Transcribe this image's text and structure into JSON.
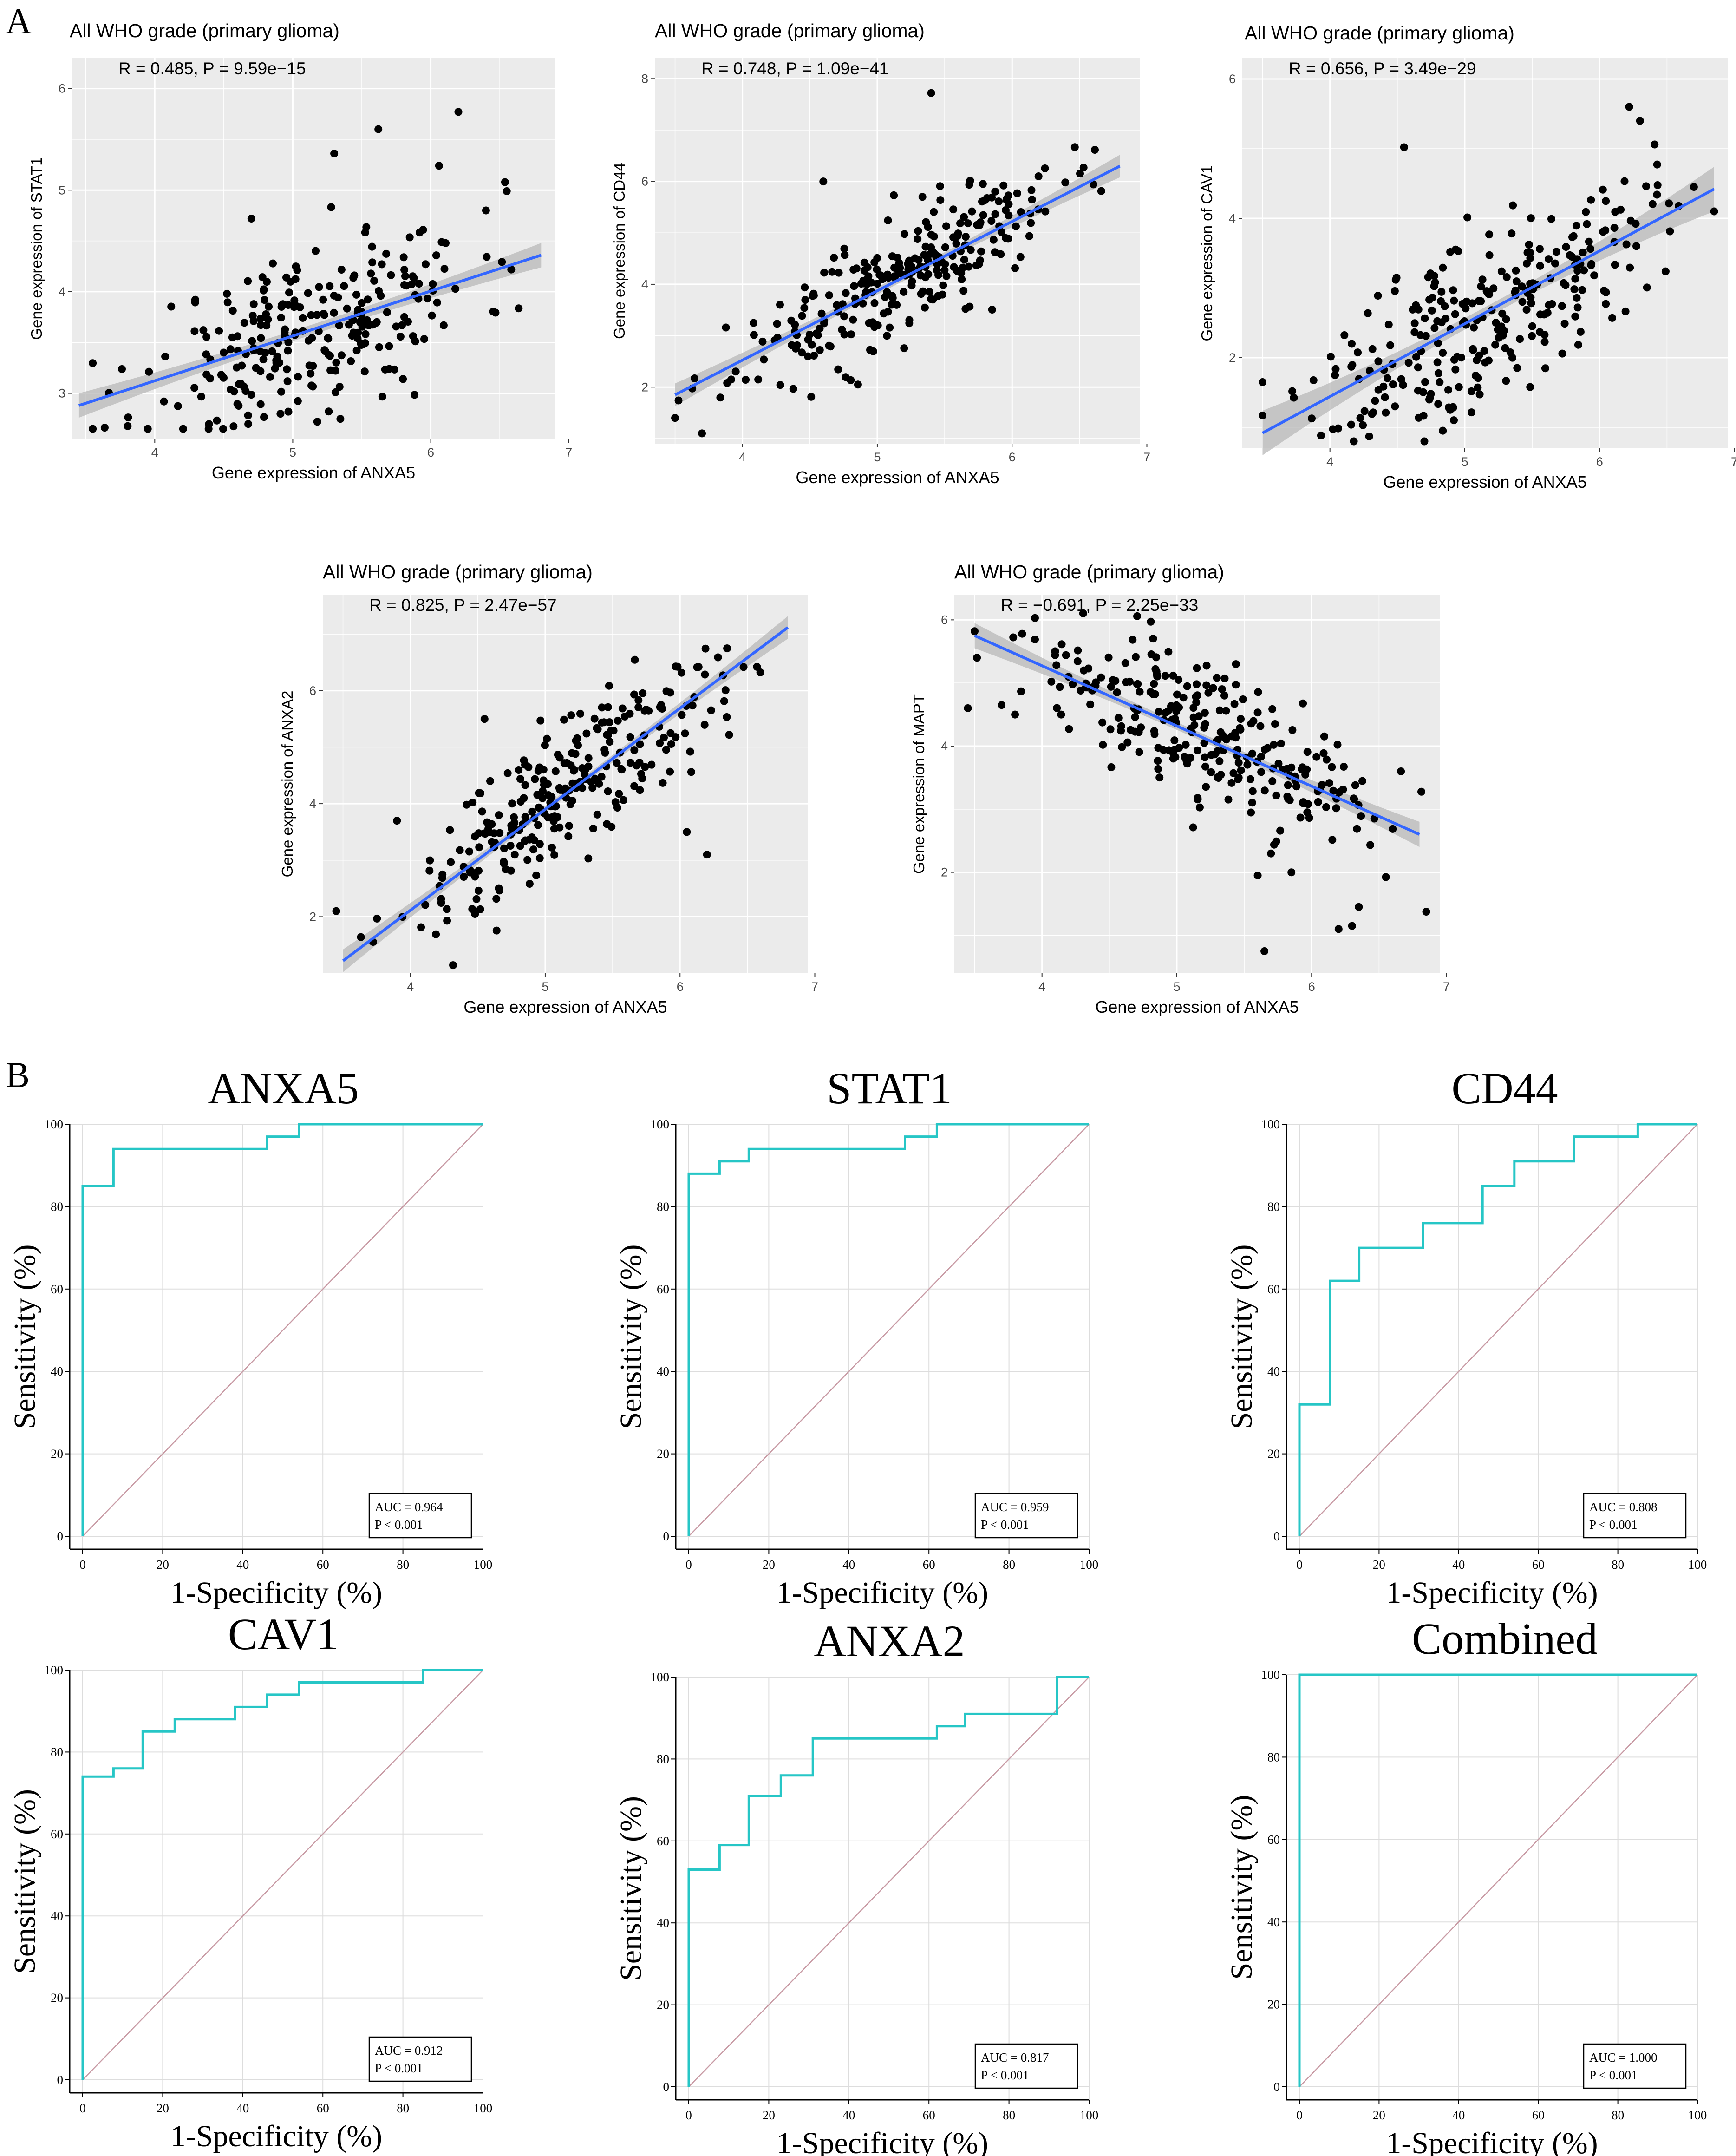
{
  "panel_labels": {
    "a": "A",
    "b": "B"
  },
  "colors": {
    "scatter_bg": "#ebebeb",
    "grid": "#ffffff",
    "point": "#000000",
    "reg_line": "#3366ff",
    "ci_band": "#b8b8b8",
    "roc_line": "#26c6c6",
    "diagonal": "#c89aa4",
    "roc_grid": "#dddddd"
  },
  "chart_data": [
    {
      "type": "scatter",
      "id": "stat1",
      "title": "All WHO grade (primary glioma)",
      "annotation": "R = 0.485, P = 9.59e−15",
      "xlabel": "Gene expression of ANXA5",
      "ylabel": "Gene expression of STAT1",
      "xlim": [
        3.4,
        6.9
      ],
      "ylim": [
        2.55,
        6.3
      ],
      "xticks": [
        4,
        5,
        6,
        7
      ],
      "yticks": [
        3,
        4,
        5,
        6
      ],
      "xtick_labels": [
        "4",
        "5",
        "6",
        "7"
      ],
      "ytick_labels": [
        "3",
        "4",
        "5",
        "6"
      ],
      "fit": {
        "x0": 3.45,
        "x1": 6.8,
        "y0": 2.88,
        "y1": 4.36,
        "ci_edge": 0.12,
        "ci_mid": 0.05
      },
      "n_points": 260,
      "seed": 11,
      "resid_sd": 0.42,
      "extra_points": [
        [
          5.3,
          5.36
        ],
        [
          5.62,
          5.6
        ],
        [
          6.2,
          5.77
        ],
        [
          6.06,
          5.24
        ],
        [
          6.4,
          4.8
        ],
        [
          4.7,
          4.72
        ]
      ]
    },
    {
      "type": "scatter",
      "id": "cd44",
      "title": "All WHO grade (primary glioma)",
      "annotation": "R = 0.748, P = 1.09e−41",
      "xlabel": "Gene expression of ANXA5",
      "ylabel": "Gene expression of CD44",
      "xlim": [
        3.35,
        6.95
      ],
      "ylim": [
        0.9,
        8.4
      ],
      "xticks": [
        4,
        5,
        6,
        7
      ],
      "yticks": [
        2,
        4,
        6,
        8
      ],
      "xtick_labels": [
        "4",
        "5",
        "6",
        "7"
      ],
      "ytick_labels": [
        "2",
        "4",
        "6",
        "8"
      ],
      "fit": {
        "x0": 3.5,
        "x1": 6.8,
        "y0": 1.85,
        "y1": 6.3,
        "ci_edge": 0.22,
        "ci_mid": 0.07
      },
      "n_points": 270,
      "seed": 23,
      "resid_sd": 0.55,
      "extra_points": [
        [
          5.4,
          7.72
        ],
        [
          3.7,
          1.1
        ],
        [
          3.5,
          1.4
        ],
        [
          4.6,
          6.0
        ]
      ]
    },
    {
      "type": "scatter",
      "id": "cav1",
      "title": "All WHO grade (primary glioma)",
      "annotation": "R = 0.656, P = 3.49e−29",
      "xlabel": "Gene expression of ANXA5",
      "ylabel": "Gene expression of CAV1",
      "xlim": [
        3.35,
        6.95
      ],
      "ylim": [
        0.7,
        6.3
      ],
      "xticks": [
        4,
        5,
        6,
        7
      ],
      "yticks": [
        2,
        4,
        6
      ],
      "xtick_labels": [
        "4",
        "5",
        "6",
        "7"
      ],
      "ytick_labels": [
        "2",
        "4",
        "6"
      ],
      "fit": {
        "x0": 3.5,
        "x1": 6.85,
        "y0": 0.92,
        "y1": 4.42,
        "ci_edge": 0.32,
        "ci_mid": 0.08
      },
      "n_points": 270,
      "seed": 37,
      "resid_sd": 0.62,
      "extra_points": [
        [
          4.55,
          5.02
        ],
        [
          6.22,
          5.6
        ],
        [
          6.3,
          5.4
        ],
        [
          6.7,
          4.45
        ],
        [
          6.85,
          4.1
        ],
        [
          3.5,
          1.65
        ]
      ]
    },
    {
      "type": "scatter",
      "id": "anxa2",
      "title": "All WHO grade (primary glioma)",
      "annotation": "R = 0.825, P = 2.47e−57",
      "xlabel": "Gene expression of ANXA5",
      "ylabel": "Gene expression of ANXA2",
      "xlim": [
        3.35,
        6.95
      ],
      "ylim": [
        1.0,
        7.7
      ],
      "xticks": [
        4,
        5,
        6,
        7
      ],
      "yticks": [
        2,
        4,
        6
      ],
      "xtick_labels": [
        "4",
        "5",
        "6",
        "7"
      ],
      "ytick_labels": [
        "2",
        "4",
        "6"
      ],
      "fit": {
        "x0": 3.5,
        "x1": 6.8,
        "y0": 1.22,
        "y1": 7.12,
        "ci_edge": 0.2,
        "ci_mid": 0.06
      },
      "n_points": 270,
      "seed": 51,
      "resid_sd": 0.62,
      "extra_points": [
        [
          3.45,
          2.1
        ],
        [
          3.9,
          3.7
        ],
        [
          4.55,
          5.5
        ],
        [
          6.2,
          3.1
        ],
        [
          6.05,
          3.5
        ]
      ]
    },
    {
      "type": "scatter",
      "id": "mapt",
      "title": "All WHO grade (primary glioma)",
      "annotation": "R = −0.691, P = 2.25e−33",
      "xlabel": "Gene expression of ANXA5",
      "ylabel": "Gene expression of MAPT",
      "xlim": [
        3.35,
        6.95
      ],
      "ylim": [
        0.4,
        6.4
      ],
      "xticks": [
        4,
        5,
        6,
        7
      ],
      "yticks": [
        2,
        4,
        6
      ],
      "xtick_labels": [
        "4",
        "5",
        "6",
        "7"
      ],
      "ytick_labels": [
        "2",
        "4",
        "6"
      ],
      "fit": {
        "x0": 3.5,
        "x1": 6.8,
        "y0": 5.75,
        "y1": 2.6,
        "ci_edge": 0.2,
        "ci_mid": 0.06
      },
      "n_points": 270,
      "seed": 67,
      "resid_sd": 0.55,
      "extra_points": [
        [
          3.45,
          4.6
        ],
        [
          3.7,
          4.65
        ],
        [
          3.8,
          4.5
        ],
        [
          5.65,
          0.75
        ],
        [
          6.2,
          1.1
        ],
        [
          6.3,
          1.15
        ],
        [
          6.35,
          1.45
        ],
        [
          5.6,
          1.95
        ],
        [
          5.85,
          2.0
        ]
      ]
    },
    {
      "type": "line",
      "subtype": "roc",
      "id": "roc-anxa5",
      "title": "ANXA5",
      "xlabel": "1-Specificity (%)",
      "ylabel": "Sensitivity (%)",
      "xlim": [
        0,
        100
      ],
      "ylim": [
        0,
        100
      ],
      "xticks": [
        0,
        20,
        40,
        60,
        80,
        100
      ],
      "yticks": [
        0,
        20,
        40,
        60,
        80,
        100
      ],
      "xtick_labels": [
        "0",
        "20",
        "40",
        "60",
        "80",
        "100"
      ],
      "ytick_labels": [
        "0",
        "20",
        "40",
        "60",
        "80",
        "100"
      ],
      "steps": [
        [
          0,
          0
        ],
        [
          0,
          85
        ],
        [
          7.7,
          85
        ],
        [
          7.7,
          94
        ],
        [
          46,
          94
        ],
        [
          46,
          97
        ],
        [
          54,
          97
        ],
        [
          54,
          100
        ],
        [
          100,
          100
        ]
      ],
      "auc_text": "AUC = 0.964",
      "p_text": "P < 0.001"
    },
    {
      "type": "line",
      "subtype": "roc",
      "id": "roc-stat1",
      "title": "STAT1",
      "xlabel": "1-Specificity (%)",
      "ylabel": "Sensitivity (%)",
      "xlim": [
        0,
        100
      ],
      "ylim": [
        0,
        100
      ],
      "xticks": [
        0,
        20,
        40,
        60,
        80,
        100
      ],
      "yticks": [
        0,
        20,
        40,
        60,
        80,
        100
      ],
      "xtick_labels": [
        "0",
        "20",
        "40",
        "60",
        "80",
        "100"
      ],
      "ytick_labels": [
        "0",
        "20",
        "40",
        "60",
        "80",
        "100"
      ],
      "steps": [
        [
          0,
          0
        ],
        [
          0,
          88
        ],
        [
          7.7,
          88
        ],
        [
          7.7,
          91
        ],
        [
          15,
          91
        ],
        [
          15,
          94
        ],
        [
          54,
          94
        ],
        [
          54,
          97
        ],
        [
          62,
          97
        ],
        [
          62,
          100
        ],
        [
          100,
          100
        ]
      ],
      "auc_text": "AUC = 0.959",
      "p_text": "P < 0.001"
    },
    {
      "type": "line",
      "subtype": "roc",
      "id": "roc-cd44",
      "title": "CD44",
      "xlabel": "1-Specificity (%)",
      "ylabel": "Sensitivity (%)",
      "xlim": [
        0,
        100
      ],
      "ylim": [
        0,
        100
      ],
      "xticks": [
        0,
        20,
        40,
        60,
        80,
        100
      ],
      "yticks": [
        0,
        20,
        40,
        60,
        80,
        100
      ],
      "xtick_labels": [
        "0",
        "20",
        "40",
        "60",
        "80",
        "100"
      ],
      "ytick_labels": [
        "0",
        "20",
        "40",
        "60",
        "80",
        "100"
      ],
      "steps": [
        [
          0,
          0
        ],
        [
          0,
          32
        ],
        [
          7.7,
          32
        ],
        [
          7.7,
          62
        ],
        [
          15,
          62
        ],
        [
          15,
          70
        ],
        [
          31,
          70
        ],
        [
          31,
          76
        ],
        [
          46,
          76
        ],
        [
          46,
          85
        ],
        [
          54,
          85
        ],
        [
          54,
          91
        ],
        [
          69,
          91
        ],
        [
          69,
          97
        ],
        [
          85,
          97
        ],
        [
          85,
          100
        ],
        [
          100,
          100
        ]
      ],
      "auc_text": "AUC = 0.808",
      "p_text": "P < 0.001"
    },
    {
      "type": "line",
      "subtype": "roc",
      "id": "roc-cav1",
      "title": "CAV1",
      "xlabel": "1-Specificity (%)",
      "ylabel": "Sensitivity (%)",
      "xlim": [
        0,
        100
      ],
      "ylim": [
        0,
        100
      ],
      "xticks": [
        0,
        20,
        40,
        60,
        80,
        100
      ],
      "yticks": [
        0,
        20,
        40,
        60,
        80,
        100
      ],
      "xtick_labels": [
        "0",
        "20",
        "40",
        "60",
        "80",
        "100"
      ],
      "ytick_labels": [
        "0",
        "20",
        "40",
        "60",
        "80",
        "100"
      ],
      "steps": [
        [
          0,
          0
        ],
        [
          0,
          74
        ],
        [
          7.7,
          74
        ],
        [
          7.7,
          76
        ],
        [
          15,
          76
        ],
        [
          15,
          85
        ],
        [
          23,
          85
        ],
        [
          23,
          88
        ],
        [
          38,
          88
        ],
        [
          38,
          91
        ],
        [
          46,
          91
        ],
        [
          46,
          94
        ],
        [
          54,
          94
        ],
        [
          54,
          97
        ],
        [
          85,
          97
        ],
        [
          85,
          100
        ],
        [
          100,
          100
        ]
      ],
      "auc_text": "AUC = 0.912",
      "p_text": "P < 0.001"
    },
    {
      "type": "line",
      "subtype": "roc",
      "id": "roc-anxa2",
      "title": "ANXA2",
      "xlabel": "1-Specificity (%)",
      "ylabel": "Sensitivity (%)",
      "xlim": [
        0,
        100
      ],
      "ylim": [
        0,
        100
      ],
      "xticks": [
        0,
        20,
        40,
        60,
        80,
        100
      ],
      "yticks": [
        0,
        20,
        40,
        60,
        80,
        100
      ],
      "xtick_labels": [
        "0",
        "20",
        "40",
        "60",
        "80",
        "100"
      ],
      "ytick_labels": [
        "0",
        "20",
        "40",
        "60",
        "80",
        "100"
      ],
      "steps": [
        [
          0,
          0
        ],
        [
          0,
          53
        ],
        [
          7.7,
          53
        ],
        [
          7.7,
          59
        ],
        [
          15,
          59
        ],
        [
          15,
          71
        ],
        [
          23,
          71
        ],
        [
          23,
          76
        ],
        [
          31,
          76
        ],
        [
          31,
          85
        ],
        [
          62,
          85
        ],
        [
          62,
          88
        ],
        [
          69,
          88
        ],
        [
          69,
          91
        ],
        [
          92,
          91
        ],
        [
          92,
          100
        ],
        [
          100,
          100
        ]
      ],
      "auc_text": "AUC = 0.817",
      "p_text": "P < 0.001"
    },
    {
      "type": "line",
      "subtype": "roc",
      "id": "roc-combined",
      "title": "Combined",
      "xlabel": "1-Specificity (%)",
      "ylabel": "Sensitivity (%)",
      "xlim": [
        0,
        100
      ],
      "ylim": [
        0,
        100
      ],
      "xticks": [
        0,
        20,
        40,
        60,
        80,
        100
      ],
      "yticks": [
        0,
        20,
        40,
        60,
        80,
        100
      ],
      "xtick_labels": [
        "0",
        "20",
        "40",
        "60",
        "80",
        "100"
      ],
      "ytick_labels": [
        "0",
        "20",
        "40",
        "60",
        "80",
        "100"
      ],
      "steps": [
        [
          0,
          0
        ],
        [
          0,
          100
        ],
        [
          100,
          100
        ]
      ],
      "auc_text": "AUC = 1.000",
      "p_text": "P < 0.001"
    }
  ]
}
